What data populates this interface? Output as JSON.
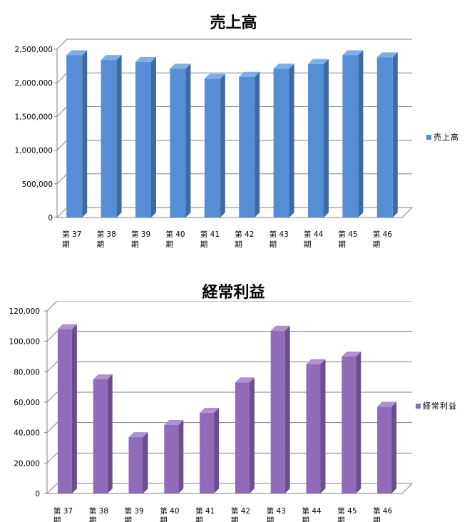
{
  "chart_data": [
    {
      "type": "bar",
      "title": "売上高",
      "categories": [
        [
          "第 37",
          "期"
        ],
        [
          "第 38",
          "期"
        ],
        [
          "第 39",
          "期"
        ],
        [
          "第 40",
          "期"
        ],
        [
          "第 41",
          "期"
        ],
        [
          "第 42",
          "期"
        ],
        [
          "第 43",
          "期"
        ],
        [
          "第 44",
          "期"
        ],
        [
          "第 45",
          "期"
        ],
        [
          "第 46",
          "期"
        ]
      ],
      "series": [
        {
          "name": "売上高",
          "values": [
            2410000,
            2340000,
            2310000,
            2210000,
            2060000,
            2090000,
            2210000,
            2280000,
            2410000,
            2380000
          ]
        }
      ],
      "ylim": [
        0,
        2500000
      ],
      "yticks": [
        "0",
        "500,000",
        "1,000,000",
        "1,500,000",
        "2,000,000",
        "2,500,000"
      ],
      "grid": true,
      "legend": "right",
      "colors": {
        "front": "#558ED5",
        "side": "#3E6AA1",
        "top": "#7FAEE6"
      }
    },
    {
      "type": "bar",
      "title": "経常利益",
      "categories": [
        [
          "第 37",
          "期"
        ],
        [
          "第 38",
          "期"
        ],
        [
          "第 39",
          "期"
        ],
        [
          "第 40",
          "期"
        ],
        [
          "第 41",
          "期"
        ],
        [
          "第 42",
          "期"
        ],
        [
          "第 43",
          "期"
        ],
        [
          "第 44",
          "期"
        ],
        [
          "第 45",
          "期"
        ],
        [
          "第 46",
          "期"
        ]
      ],
      "series": [
        {
          "name": "経常利益",
          "values": [
            108000,
            75000,
            37000,
            45000,
            53000,
            73000,
            107000,
            85000,
            90000,
            57000
          ]
        }
      ],
      "ylim": [
        0,
        120000
      ],
      "yticks": [
        "0",
        "20,000",
        "40,000",
        "60,000",
        "80,000",
        "100,000",
        "120,000"
      ],
      "grid": true,
      "legend": "right",
      "colors": {
        "front": "#8F6BB9",
        "side": "#6B4E8C",
        "top": "#AE91D1"
      }
    }
  ]
}
